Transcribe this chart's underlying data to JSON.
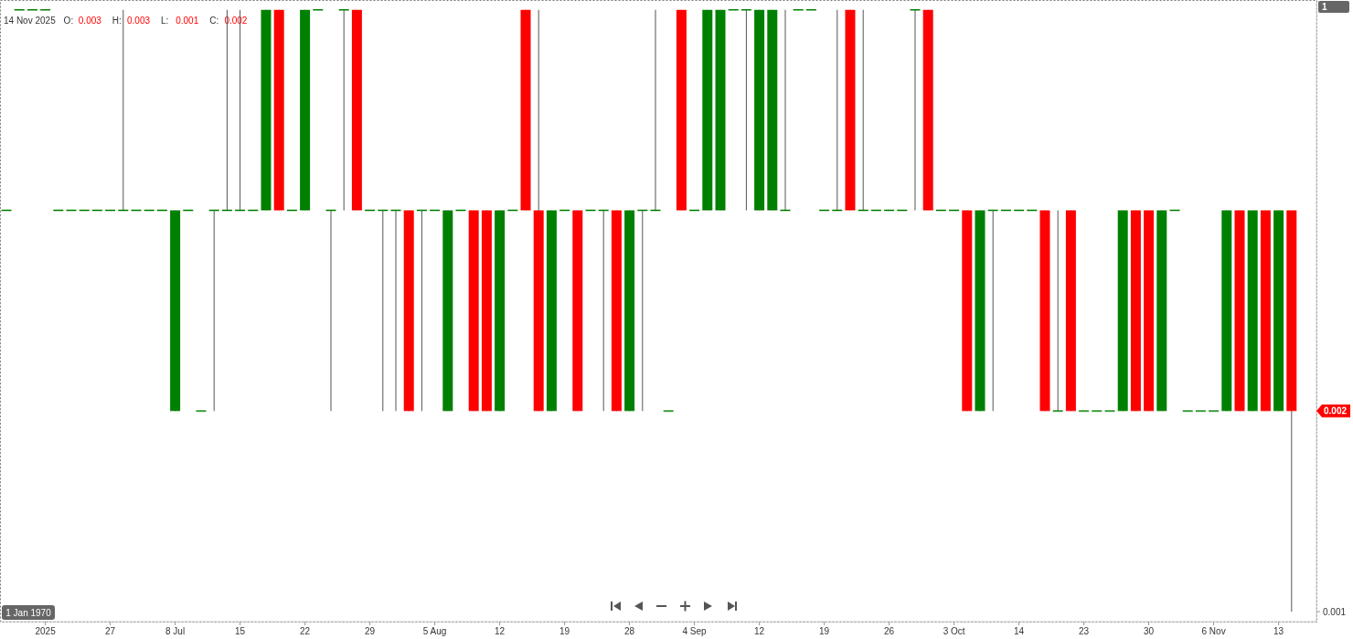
{
  "chart_data": {
    "type": "candlestick",
    "title": "14 Nov 2025",
    "annotations": [
      "O:",
      "0.003",
      "H:",
      "0.003",
      "L:",
      "0.001",
      "C:",
      "0.002",
      "1 Jan 1970",
      "1"
    ],
    "categories": [
      null,
      null,
      null,
      "2025",
      null,
      null,
      null,
      null,
      "27",
      null,
      null,
      null,
      null,
      "8 Jul",
      null,
      null,
      null,
      null,
      "15",
      null,
      null,
      null,
      null,
      "22",
      null,
      null,
      null,
      null,
      "29",
      null,
      null,
      null,
      null,
      "5 Aug",
      null,
      null,
      null,
      null,
      "12",
      null,
      null,
      null,
      null,
      "19",
      null,
      null,
      null,
      null,
      "28",
      null,
      null,
      null,
      null,
      "4 Sep",
      null,
      null,
      null,
      null,
      "12",
      null,
      null,
      null,
      null,
      "19",
      null,
      null,
      null,
      null,
      "26",
      null,
      null,
      null,
      null,
      "3 Oct",
      null,
      null,
      null,
      null,
      "14",
      null,
      null,
      null,
      null,
      "23",
      null,
      null,
      null,
      null,
      "30",
      null,
      null,
      null,
      null,
      "6 Nov",
      null,
      null,
      null,
      null,
      "13",
      null
    ],
    "ohlc": [
      [
        0.003,
        0.003,
        0.003,
        0.003
      ],
      [
        0.004,
        0.004,
        0.004,
        0.004
      ],
      [
        0.004,
        0.004,
        0.004,
        0.004
      ],
      [
        0.004,
        0.004,
        0.004,
        0.004
      ],
      [
        0.003,
        0.003,
        0.003,
        0.003
      ],
      [
        0.003,
        0.003,
        0.003,
        0.003
      ],
      [
        0.003,
        0.003,
        0.003,
        0.003
      ],
      [
        0.003,
        0.003,
        0.003,
        0.003
      ],
      [
        0.003,
        0.003,
        0.003,
        0.003
      ],
      [
        0.003,
        0.004,
        0.003,
        0.003
      ],
      [
        0.003,
        0.003,
        0.003,
        0.003
      ],
      [
        0.003,
        0.003,
        0.003,
        0.003
      ],
      [
        0.003,
        0.003,
        0.003,
        0.003
      ],
      [
        0.002,
        0.003,
        0.002,
        0.003
      ],
      [
        0.003,
        0.003,
        0.003,
        0.003
      ],
      [
        0.002,
        0.002,
        0.002,
        0.002
      ],
      [
        0.003,
        0.003,
        0.002,
        0.003
      ],
      [
        0.003,
        0.004,
        0.003,
        0.003
      ],
      [
        0.003,
        0.004,
        0.003,
        0.003
      ],
      [
        0.003,
        0.003,
        0.003,
        0.003
      ],
      [
        0.003,
        0.004,
        0.003,
        0.004
      ],
      [
        0.004,
        0.004,
        0.003,
        0.003
      ],
      [
        0.003,
        0.003,
        0.003,
        0.003
      ],
      [
        0.003,
        0.004,
        0.003,
        0.004
      ],
      [
        0.004,
        0.004,
        0.004,
        0.004
      ],
      [
        0.003,
        0.003,
        0.002,
        0.003
      ],
      [
        0.004,
        0.004,
        0.003,
        0.004
      ],
      [
        0.004,
        0.004,
        0.003,
        0.003
      ],
      [
        0.003,
        0.003,
        0.003,
        0.003
      ],
      [
        0.003,
        0.003,
        0.002,
        0.003
      ],
      [
        0.003,
        0.003,
        0.002,
        0.003
      ],
      [
        0.003,
        0.003,
        0.002,
        0.002
      ],
      [
        0.003,
        0.003,
        0.002,
        0.003
      ],
      [
        0.003,
        0.003,
        0.003,
        0.003
      ],
      [
        0.002,
        0.003,
        0.002,
        0.003
      ],
      [
        0.003,
        0.003,
        0.003,
        0.003
      ],
      [
        0.003,
        0.003,
        0.002,
        0.002
      ],
      [
        0.003,
        0.003,
        0.002,
        0.002
      ],
      [
        0.002,
        0.003,
        0.002,
        0.003
      ],
      [
        0.003,
        0.003,
        0.003,
        0.003
      ],
      [
        0.004,
        0.004,
        0.003,
        0.003
      ],
      [
        0.003,
        0.004,
        0.002,
        0.002
      ],
      [
        0.002,
        0.003,
        0.002,
        0.003
      ],
      [
        0.003,
        0.003,
        0.003,
        0.003
      ],
      [
        0.003,
        0.003,
        0.002,
        0.002
      ],
      [
        0.003,
        0.003,
        0.003,
        0.003
      ],
      [
        0.003,
        0.003,
        0.002,
        0.003
      ],
      [
        0.003,
        0.003,
        0.002,
        0.002
      ],
      [
        0.002,
        0.003,
        0.002,
        0.003
      ],
      [
        0.003,
        0.003,
        0.002,
        0.003
      ],
      [
        0.003,
        0.004,
        0.003,
        0.003
      ],
      [
        0.002,
        0.002,
        0.002,
        0.002
      ],
      [
        0.004,
        0.004,
        0.003,
        0.003
      ],
      [
        0.003,
        0.003,
        0.003,
        0.003
      ],
      [
        0.003,
        0.004,
        0.003,
        0.004
      ],
      [
        0.003,
        0.004,
        0.003,
        0.004
      ],
      [
        0.004,
        0.004,
        0.004,
        0.004
      ],
      [
        0.004,
        0.004,
        0.003,
        0.004
      ],
      [
        0.003,
        0.004,
        0.003,
        0.004
      ],
      [
        0.003,
        0.004,
        0.003,
        0.004
      ],
      [
        0.003,
        0.004,
        0.003,
        0.003
      ],
      [
        0.004,
        0.004,
        0.004,
        0.004
      ],
      [
        0.004,
        0.004,
        0.004,
        0.004
      ],
      [
        0.003,
        0.003,
        0.003,
        0.003
      ],
      [
        0.003,
        0.004,
        0.003,
        0.003
      ],
      [
        0.004,
        0.004,
        0.003,
        0.003
      ],
      [
        0.003,
        0.004,
        0.003,
        0.003
      ],
      [
        0.003,
        0.003,
        0.003,
        0.003
      ],
      [
        0.003,
        0.003,
        0.003,
        0.003
      ],
      [
        0.003,
        0.003,
        0.003,
        0.003
      ],
      [
        0.004,
        0.004,
        0.003,
        0.004
      ],
      [
        0.004,
        0.004,
        0.003,
        0.003
      ],
      [
        0.003,
        0.003,
        0.003,
        0.003
      ],
      [
        0.003,
        0.003,
        0.003,
        0.003
      ],
      [
        0.003,
        0.003,
        0.002,
        0.002
      ],
      [
        0.002,
        0.003,
        0.002,
        0.003
      ],
      [
        0.003,
        0.003,
        0.002,
        0.003
      ],
      [
        0.003,
        0.003,
        0.003,
        0.003
      ],
      [
        0.003,
        0.003,
        0.003,
        0.003
      ],
      [
        0.003,
        0.003,
        0.003,
        0.003
      ],
      [
        0.003,
        0.003,
        0.002,
        0.002
      ],
      [
        0.002,
        0.003,
        0.002,
        0.002
      ],
      [
        0.003,
        0.003,
        0.002,
        0.002
      ],
      [
        0.002,
        0.002,
        0.002,
        0.002
      ],
      [
        0.002,
        0.002,
        0.002,
        0.002
      ],
      [
        0.002,
        0.002,
        0.002,
        0.002
      ],
      [
        0.002,
        0.003,
        0.002,
        0.003
      ],
      [
        0.003,
        0.003,
        0.002,
        0.002
      ],
      [
        0.003,
        0.003,
        0.002,
        0.002
      ],
      [
        0.002,
        0.003,
        0.002,
        0.003
      ],
      [
        0.003,
        0.003,
        0.003,
        0.003
      ],
      [
        0.002,
        0.002,
        0.002,
        0.002
      ],
      [
        0.002,
        0.002,
        0.002,
        0.002
      ],
      [
        0.002,
        0.002,
        0.002,
        0.002
      ],
      [
        0.002,
        0.003,
        0.002,
        0.003
      ],
      [
        0.003,
        0.003,
        0.002,
        0.002
      ],
      [
        0.002,
        0.003,
        0.002,
        0.003
      ],
      [
        0.003,
        0.003,
        0.002,
        0.002
      ],
      [
        0.002,
        0.003,
        0.002,
        0.003
      ],
      [
        0.003,
        0.003,
        0.001,
        0.002
      ]
    ],
    "colors": [
      "#008000",
      "#008000",
      "#008000",
      "#008000",
      "#008000",
      "#008000",
      "#008000",
      "#008000",
      "#008000",
      "#008000",
      "#008000",
      "#008000",
      "#008000",
      "#008000",
      "#008000",
      "#008000",
      "#008000",
      "#008000",
      "#008000",
      "#008000",
      "#008000",
      "#ff0000",
      "#008000",
      "#008000",
      "#008000",
      "#008000",
      "#008000",
      "#ff0000",
      "#008000",
      "#008000",
      "#008000",
      "#ff0000",
      "#008000",
      "#008000",
      "#008000",
      "#008000",
      "#ff0000",
      "#ff0000",
      "#008000",
      "#008000",
      "#ff0000",
      "#ff0000",
      "#008000",
      "#008000",
      "#ff0000",
      "#008000",
      "#008000",
      "#ff0000",
      "#008000",
      "#008000",
      "#008000",
      "#008000",
      "#ff0000",
      "#008000",
      "#008000",
      "#008000",
      "#008000",
      "#008000",
      "#008000",
      "#008000",
      "#008000",
      "#008000",
      "#008000",
      "#008000",
      "#008000",
      "#ff0000",
      "#008000",
      "#008000",
      "#008000",
      "#008000",
      "#008000",
      "#ff0000",
      "#008000",
      "#008000",
      "#ff0000",
      "#008000",
      "#008000",
      "#008000",
      "#008000",
      "#008000",
      "#ff0000",
      "#008000",
      "#ff0000",
      "#008000",
      "#008000",
      "#008000",
      "#008000",
      "#ff0000",
      "#ff0000",
      "#008000",
      "#008000",
      "#008000",
      "#008000",
      "#008000",
      "#008000",
      "#ff0000",
      "#008000",
      "#ff0000",
      "#008000",
      "#ff0000"
    ],
    "ylim": [
      0.00095,
      0.00404
    ],
    "yticks": [
      0.001,
      0.002
    ],
    "grid": false
  }
}
